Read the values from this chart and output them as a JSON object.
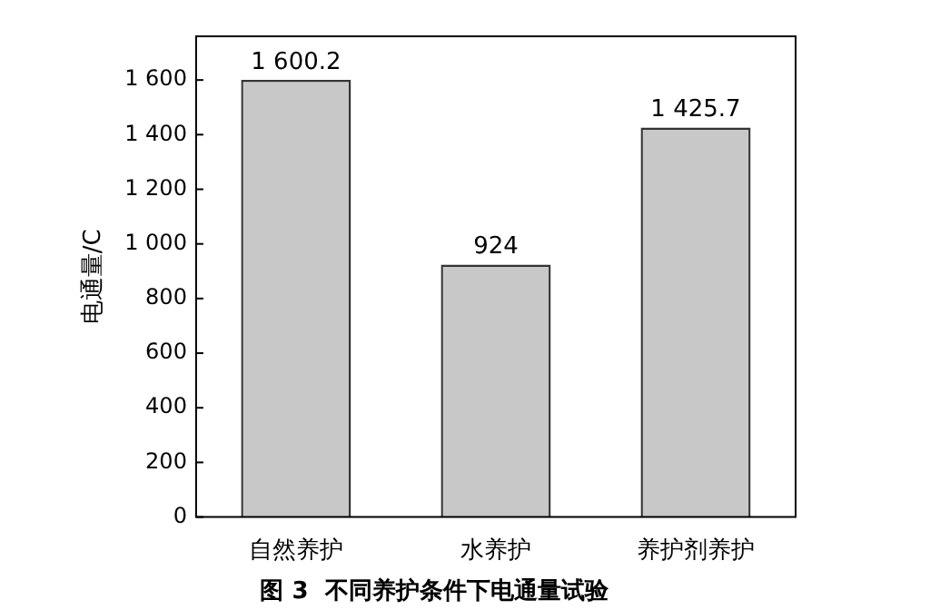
{
  "chart_data": {
    "type": "bar",
    "title": "图 3  不同养护条件下电通量试验",
    "ylabel": "电通量/C",
    "categories": [
      "自然养护",
      "水养护",
      "养护剂养护"
    ],
    "series": [
      {
        "color": "#c8c8c8",
        "values": [
          1600.2,
          924,
          1425.7
        ],
        "value_labels": [
          "1 600.2",
          "924",
          "1 425.7"
        ]
      }
    ],
    "ylim": [
      0,
      1760
    ],
    "yticks": [
      0,
      200,
      400,
      600,
      800,
      {
        "value": 1000,
        "label": "1 000"
      },
      {
        "value": 1200,
        "label": "1 200"
      },
      {
        "value": 1400,
        "label": "1 400"
      },
      {
        "value": 1600,
        "label": "1 600"
      }
    ],
    "grid": false,
    "legend": false
  }
}
